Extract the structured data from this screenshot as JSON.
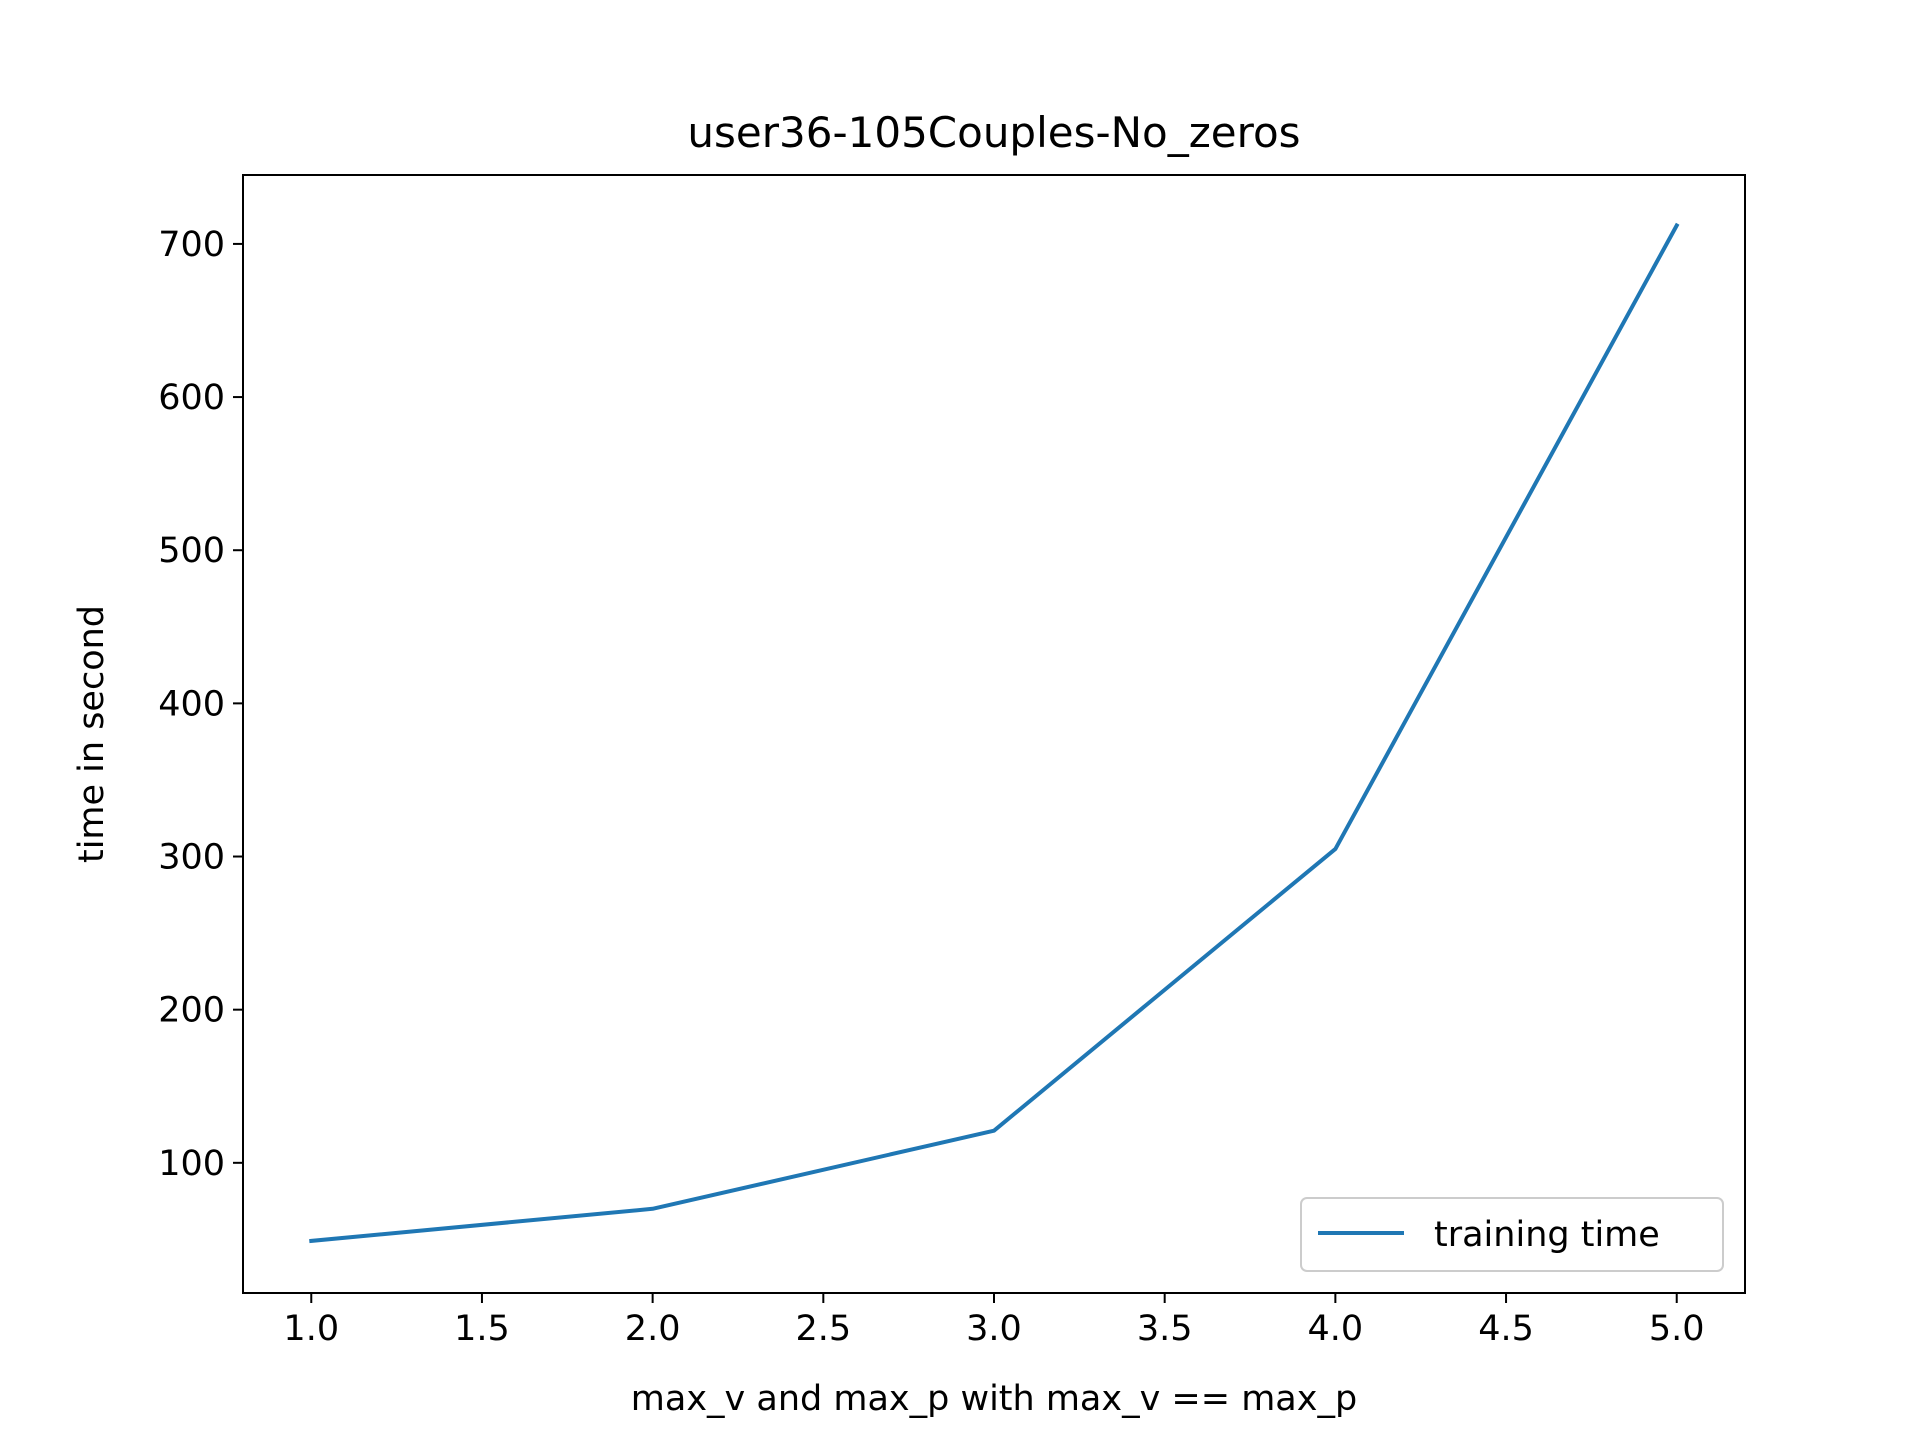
{
  "chart_data": {
    "type": "line",
    "title": "user36-105Couples-No_zeros",
    "xlabel": "max_v and max_p with max_v == max_p",
    "ylabel": "time in second",
    "xlim": [
      0.8,
      5.2
    ],
    "ylim": [
      15,
      745
    ],
    "xticks": [
      1.0,
      1.5,
      2.0,
      2.5,
      3.0,
      3.5,
      4.0,
      4.5,
      5.0
    ],
    "xtick_labels": [
      "1.0",
      "1.5",
      "2.0",
      "2.5",
      "3.0",
      "3.5",
      "4.0",
      "4.5",
      "5.0"
    ],
    "yticks": [
      100,
      200,
      300,
      400,
      500,
      600,
      700
    ],
    "ytick_labels": [
      "100",
      "200",
      "300",
      "400",
      "500",
      "600",
      "700"
    ],
    "grid": false,
    "legend_position": "lower-right",
    "series": [
      {
        "name": "training time",
        "color": "#1f77b4",
        "x": [
          1.0,
          2.0,
          3.0,
          4.0,
          5.0
        ],
        "y": [
          49,
          70,
          121,
          305,
          712
        ]
      }
    ]
  }
}
